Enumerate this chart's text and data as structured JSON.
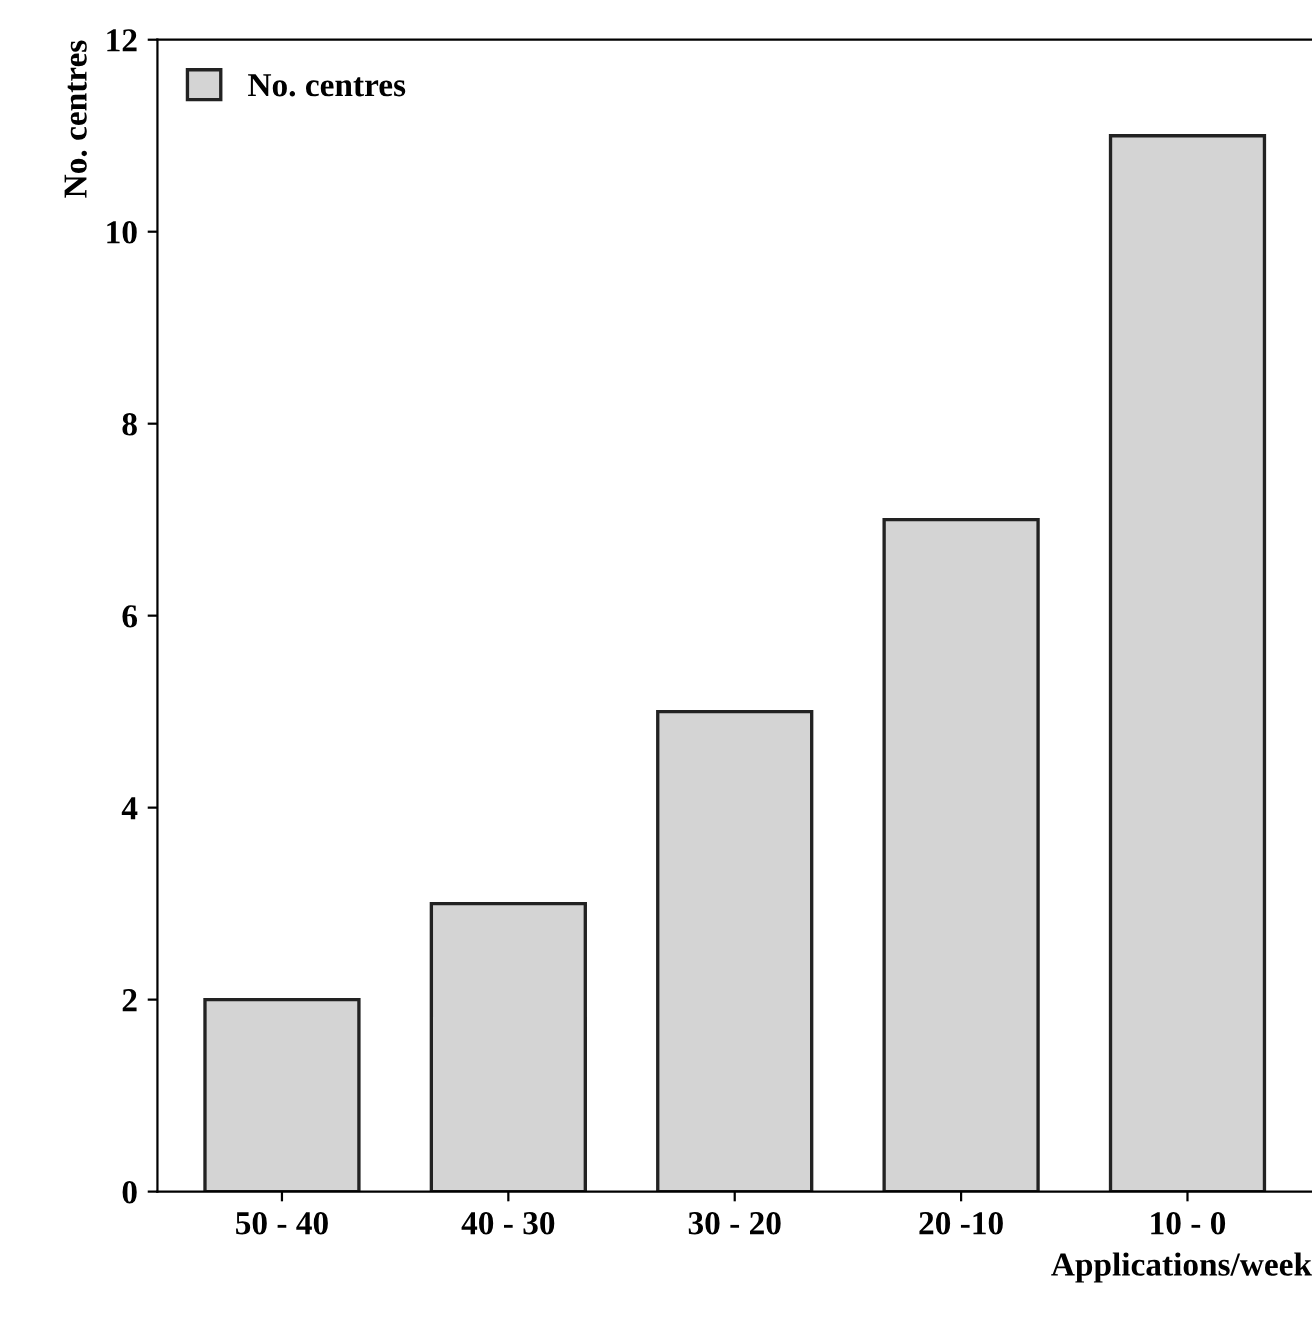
{
  "chart_data": {
    "type": "bar",
    "xlabel": "Applications/week",
    "ylabel": "No. centres",
    "categories": [
      "50 - 40",
      "40 - 30",
      "30 - 20",
      "20 -10",
      "10 - 0"
    ],
    "series": [
      {
        "name": "No. centres",
        "color": "#d4d4d4",
        "values": [
          2,
          3,
          5,
          7,
          11
        ]
      }
    ],
    "ylim": [
      0,
      12
    ],
    "yticks": [
      0,
      2,
      4,
      6,
      8,
      10,
      12
    ],
    "grid": false,
    "legend": "top left"
  }
}
